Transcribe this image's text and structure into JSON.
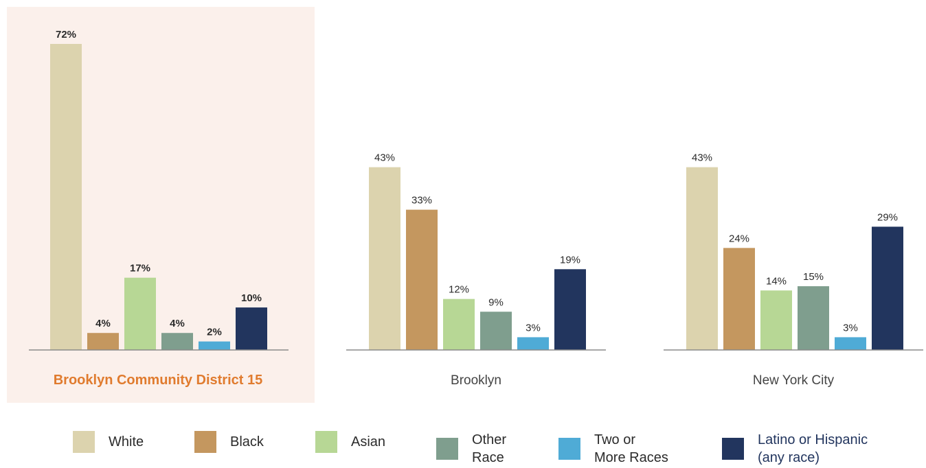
{
  "chart_data": {
    "type": "bar",
    "categories": [
      "White",
      "Black",
      "Asian",
      "Other Race",
      "Two or More Races",
      "Latino or Hispanic (any race)"
    ],
    "series_colors": [
      "#dcd3ae",
      "#c4975f",
      "#b7d795",
      "#7f9e8e",
      "#4fabd6",
      "#22355e"
    ],
    "panels": [
      {
        "name": "Brooklyn Community District 15",
        "values": [
          72,
          4,
          17,
          4,
          2,
          10
        ],
        "labels": [
          "72%",
          "4%",
          "17%",
          "4%",
          "2%",
          "10%"
        ],
        "highlight": true
      },
      {
        "name": "Brooklyn",
        "values": [
          43,
          33,
          12,
          9,
          3,
          19
        ],
        "labels": [
          "43%",
          "33%",
          "12%",
          "9%",
          "3%",
          "19%"
        ],
        "highlight": false
      },
      {
        "name": "New York City",
        "values": [
          43,
          24,
          14,
          15,
          3,
          29
        ],
        "labels": [
          "43%",
          "24%",
          "14%",
          "15%",
          "3%",
          "29%"
        ],
        "highlight": false
      }
    ],
    "ylim": [
      0,
      72
    ],
    "highlight_background": "#fbf0eb",
    "highlight_title_color": "#e07b2e",
    "legend": {
      "placement": "bottom",
      "items": [
        {
          "line1": "White",
          "line2": ""
        },
        {
          "line1": "Black",
          "line2": ""
        },
        {
          "line1": "Asian",
          "line2": ""
        },
        {
          "line1": "Other",
          "line2": "Race"
        },
        {
          "line1": "Two or",
          "line2": "More Races"
        },
        {
          "line1": "Latino or Hispanic",
          "line2": "(any race)"
        }
      ]
    }
  }
}
